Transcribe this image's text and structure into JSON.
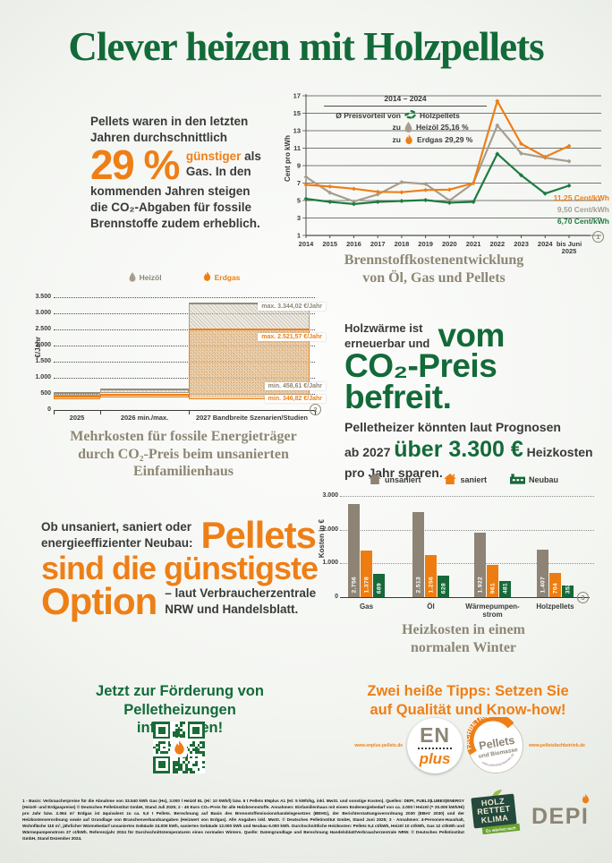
{
  "page": {
    "title": "Clever heizen mit Holzpellets"
  },
  "intro": {
    "line1": "Pellets waren in den letzten",
    "line2": "Jahren durchschnittlich",
    "big_percent": "29 %",
    "highlight": "günstiger",
    "after_highlight": " als",
    "line3": "Gas. In den",
    "line4": "kommenden Jahren steigen",
    "line5": "die CO₂-Abgaben für fossile",
    "line6": "Brennstoffe zudem erheblich."
  },
  "chart_data": [
    {
      "type": "line",
      "title": "Brennstoffkostenentwicklung von Öl, Gas und Pellets",
      "title_lines": [
        "Brennstoffkostenentwicklung",
        "von Öl, Gas und Pellets"
      ],
      "ylabel": "Cent pro kWh",
      "ylim": [
        1,
        17
      ],
      "yticks": [
        1,
        3,
        5,
        7,
        9,
        11,
        13,
        15,
        17
      ],
      "x": [
        "2014",
        "2015",
        "2016",
        "2017",
        "2018",
        "2019",
        "2020",
        "2021",
        "2022",
        "2023",
        "2024",
        "bis Juni 2025"
      ],
      "x_display": [
        [
          "2014"
        ],
        [
          "2015"
        ],
        [
          "2016"
        ],
        [
          "2017"
        ],
        [
          "2018"
        ],
        [
          "2019"
        ],
        [
          "2020"
        ],
        [
          "2021"
        ],
        [
          "2022"
        ],
        [
          "2023"
        ],
        [
          "2024"
        ],
        [
          "bis Juni",
          "2025"
        ]
      ],
      "legend": {
        "period": "2014 – 2024",
        "heading": "Ø Preisvorteil von",
        "rows": [
          {
            "prefix": "",
            "icon": "pellets-icon",
            "label": "Holzpellets"
          },
          {
            "prefix": "zu",
            "icon": "oil-drop-icon",
            "label": "Heizöl 25,16 %"
          },
          {
            "prefix": "zu",
            "icon": "flame-icon",
            "label": "Erdgas 29,29 %"
          }
        ]
      },
      "series": [
        {
          "name": "Erdgas",
          "color": "#ee7f16",
          "values": [
            6.8,
            6.6,
            6.35,
            6.0,
            5.95,
            6.2,
            6.25,
            7.0,
            16.4,
            11.5,
            10.0,
            11.25
          ],
          "end_label": "11,25 Cent/kWh"
        },
        {
          "name": "Heizöl",
          "color": "#a69d8e",
          "values": [
            7.7,
            5.9,
            4.9,
            5.7,
            7.1,
            6.9,
            5.0,
            7.0,
            13.6,
            10.4,
            9.9,
            9.5
          ],
          "end_label": "9,50 Cent/kWh"
        },
        {
          "name": "Holzpellets",
          "color": "#1e7b40",
          "values": [
            5.2,
            4.85,
            4.6,
            4.85,
            4.95,
            5.05,
            4.75,
            4.85,
            10.35,
            7.9,
            5.8,
            6.7
          ],
          "end_label": "6,70 Cent/kWh"
        }
      ],
      "footnote_marker": "1"
    },
    {
      "type": "area",
      "title": "Mehrkosten für fossile Energieträger durch CO₂-Preis beim unsanierten Einfamilienhaus",
      "title_lines": [
        "Mehrkosten für fossile Energieträger",
        "durch CO₂-Preis beim unsanierten",
        "Einfamilienhaus"
      ],
      "ylabel": "€/Jahr",
      "ylim": [
        0,
        3500
      ],
      "yticks": [
        "0",
        "500",
        "1.000",
        "1.500",
        "2.000",
        "2.500",
        "3.000",
        "3.500"
      ],
      "periods": [
        "2025",
        "2026 min./max.",
        "2027 Bandbreite Szenarien/Studien"
      ],
      "series": [
        {
          "name": "Heizöl",
          "icon": "oil-drop-icon",
          "color": "#a69d8e",
          "ranges": [
            [
              490,
              560
            ],
            [
              520,
              660
            ],
            [
              458.61,
              3344.02
            ]
          ],
          "max_label": "max. 3.344,02 €/Jahr",
          "min_label": "min. 458,61 €/Jahr"
        },
        {
          "name": "Erdgas",
          "icon": "flame-icon",
          "color": "#ee7f16",
          "ranges": [
            [
              380,
              440
            ],
            [
              380,
              490
            ],
            [
              346.82,
              2521.57
            ]
          ],
          "max_label": "max. 2.521,57 €/Jahr",
          "min_label": "min. 346,82 €/Jahr"
        }
      ],
      "footnote_marker": "2"
    },
    {
      "type": "bar",
      "title": "Heizkosten in einem normalen Winter",
      "title_lines": [
        "Heizkosten in einem",
        "normalen Winter"
      ],
      "ylabel": "Kosten in €",
      "ylim": [
        0,
        3000
      ],
      "yticks": [
        "0",
        "1.000",
        "2.000",
        "3.000"
      ],
      "categories": [
        "Gas",
        "Öl",
        "Wärmepumpenstrom",
        "Holzpellets"
      ],
      "categories_display": [
        [
          "Gas"
        ],
        [
          "Öl"
        ],
        [
          "Wärmepumpen-",
          "strom"
        ],
        [
          "Holzpellets"
        ]
      ],
      "series": [
        {
          "name": "unsaniert",
          "icon": "house-icon",
          "color": "#8d8475",
          "values": [
            2756,
            2513,
            1922,
            1407
          ],
          "labels": [
            "2.756",
            "2.513",
            "1.922",
            "1.407"
          ]
        },
        {
          "name": "saniert",
          "icon": "house-icon",
          "color": "#ee7d11",
          "values": [
            1378,
            1256,
            961,
            704
          ],
          "labels": [
            "1.378",
            "1.256",
            "961",
            "704"
          ]
        },
        {
          "name": "Neubau",
          "icon": "building-icon",
          "color": "#17693a",
          "values": [
            689,
            628,
            481,
            352
          ],
          "labels": [
            "689",
            "628",
            "481",
            "352"
          ]
        }
      ],
      "footnote_marker": "3"
    }
  ],
  "co2_block": {
    "small1": "Holzwärme ist",
    "small2": "erneuerbar und",
    "big1": "vom",
    "big2": "CO₂-Preis befreit.",
    "body1": "Pelletheizer könnten laut Prognosen",
    "body2_pre": "ab 2027 ",
    "body2_big": "über 3.300 €",
    "body2_post": " Heizkosten",
    "body3": "pro Jahr sparen."
  },
  "pellets_block": {
    "pre1": "Ob unsaniert, saniert oder",
    "pre2": "energieeffizienter Neubau:",
    "big1": "Pellets",
    "big2": "sind die günstigste",
    "big3": "Option",
    "post1": "– laut Verbraucherzentrale",
    "post2": "NRW und Handelsblatt."
  },
  "cta": {
    "line1": "Jetzt zur Förderung von",
    "line2": "Pelletheizungen informieren!"
  },
  "tips": {
    "line1": "Zwei heiße Tipps: Setzen Sie",
    "line2": "auf Qualität und Know-how!",
    "url_left": "www.enplus-pellets.de",
    "url_right": "www.pelletsfachbetrieb.de",
    "enplus_top": "EN",
    "enplus_bottom": "plus",
    "fachbetrieb_arc": "FACHBETRIEB",
    "fachbetrieb_line1": "Pellets",
    "fachbetrieb_line2": "und Biomasse",
    "fachbetrieb_arc_bottom": "www.pelletsfachbetrieb.de"
  },
  "footer": {
    "fineprint": "1 - Basis: Verbraucherpreise für die Abnahme von 33.540 kWh Gas (Hs), 3.000 l Heizöl EL (Hi: 10 kWh/l) bzw. 6 t Pellets ENplus A1 (Hi: 5 kWh/kg, inkl. MwSt. und sonstige Kosten). Quellen: DEPI, FUELS|LUBES|ENERGY (Heizöl- und Erdgaspreise) © Deutsches Pelletinstitut GmbH, Stand Juli 2025; 2 - 45 Euro CO₂-Preis für alle Holzbrennstoffe. Annahmen: Einfamilienhaus mit einem Endenergiebedarf von ca. 2.000 l Heizöl (= 20.000 kWh/Hi) pro Jahr bzw. 2.064 m³ Erdgas ist äquivalent zu ca. 5,0 t Pellets. Berechnung auf Basis des Brennstoffemissionshandelsgesetzes (BEHG), der Berichterstattungsverordnung 2030 (EBeV 2030) und der Heizkostenverordnung sowie auf Grundlage von Branchenverbandsangaben (Heizwert von Erdgas). Alle Angaben inkl. MwSt. © Deutsches Pelletinstitut GmbH, Stand Juni 2025; 3 - Annahmen: 4-Personen-Haushalt, Wohnfläche 110 m², jährlicher Wärmebedarf unsaniertes Gebäude 24.000 kWh, saniertes Gebäude 12.000 kWh und Neubau 6.000 kWh. Durchschnittliche Heizkosten: Pellets 9,4 ct/kWh, Heizöl 10 ct/kWh, Gas 12 ct/kWh und Wärmepumpenstrom 27 ct/kWh. Referenzjahr 2024 für Durchschnittstemperaturen eines normalen Winters. Quelle: Datengrundlage und Berechnung Handelsblatt/Verbraucherzentrale NRW. © Deutsches Pelletinstitut GmbH, Stand Dezember 2024.",
    "hrk": [
      "HOLZ",
      "RETTET",
      "KLIMA"
    ],
    "hrk_ribbon": "Es wächst nach",
    "depi": "DEPI"
  }
}
